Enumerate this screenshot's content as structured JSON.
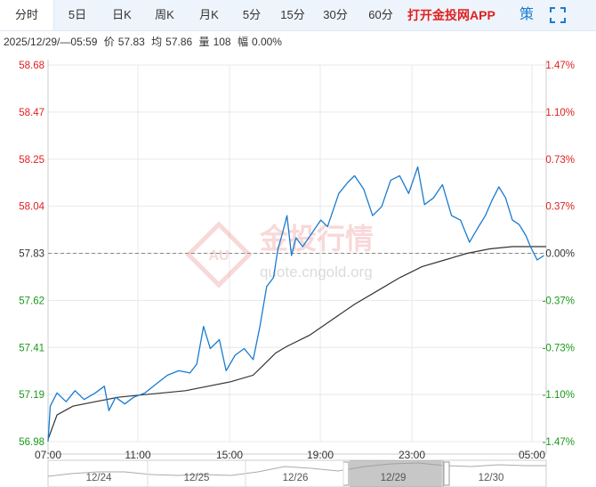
{
  "tabs": [
    {
      "label": "分时",
      "active": true
    },
    {
      "label": "5日",
      "active": false
    },
    {
      "label": "日K",
      "active": false
    },
    {
      "label": "周K",
      "active": false
    },
    {
      "label": "月K",
      "active": false
    },
    {
      "label": "5分",
      "active": false
    },
    {
      "label": "15分",
      "active": false
    },
    {
      "label": "30分",
      "active": false
    },
    {
      "label": "60分",
      "active": false
    }
  ],
  "app_link": "打开金投网APP",
  "strategy_icon": "策",
  "fullscreen_icon": "fullscreen-icon",
  "info": {
    "datetime": "2025/12/29/—05:59",
    "price_label": "价",
    "price": "57.83",
    "avg_label": "均",
    "avg": "57.86",
    "vol_label": "量",
    "volume": "108",
    "amp_label": "幅",
    "amplitude": "0.00%"
  },
  "watermark": {
    "logo_text": "AU",
    "name": "金投行情",
    "url": "quote.cngold.org"
  },
  "colors": {
    "up": "#e02020",
    "down": "#1a9a1a",
    "neutral": "#333333",
    "price_line": "#1a7bd0",
    "avg_line": "#333333",
    "ref_line": "#888888"
  },
  "chart_data": {
    "type": "line",
    "y_ticks": [
      "58.68",
      "58.47",
      "58.25",
      "58.04",
      "57.83",
      "57.62",
      "57.41",
      "57.19",
      "56.98"
    ],
    "pct_ticks": [
      "1.47%",
      "1.10%",
      "0.73%",
      "0.37%",
      "0.00%",
      "-0.37%",
      "-0.73%",
      "-1.10%",
      "-1.47%"
    ],
    "x_ticks": [
      "07:00",
      "11:00",
      "15:00",
      "19:00",
      "23:00",
      "05:00"
    ],
    "ylim": [
      56.98,
      58.68
    ],
    "prev_close": 57.83,
    "x_range_hours": [
      6.9,
      29.0
    ],
    "grid": true,
    "series": [
      {
        "role": "price",
        "points": [
          [
            6.9,
            56.98
          ],
          [
            7.0,
            57.14
          ],
          [
            7.3,
            57.2
          ],
          [
            7.7,
            57.16
          ],
          [
            8.1,
            57.21
          ],
          [
            8.5,
            57.17
          ],
          [
            9.0,
            57.2
          ],
          [
            9.4,
            57.23
          ],
          [
            9.6,
            57.12
          ],
          [
            9.9,
            57.18
          ],
          [
            10.3,
            57.15
          ],
          [
            10.7,
            57.18
          ],
          [
            11.2,
            57.2
          ],
          [
            11.7,
            57.24
          ],
          [
            12.2,
            57.28
          ],
          [
            12.7,
            57.3
          ],
          [
            13.2,
            57.29
          ],
          [
            13.5,
            57.33
          ],
          [
            13.8,
            57.5
          ],
          [
            14.1,
            57.4
          ],
          [
            14.5,
            57.44
          ],
          [
            14.8,
            57.3
          ],
          [
            15.2,
            57.37
          ],
          [
            15.6,
            57.4
          ],
          [
            16.0,
            57.35
          ],
          [
            16.3,
            57.5
          ],
          [
            16.6,
            57.68
          ],
          [
            16.9,
            57.72
          ],
          [
            17.1,
            57.85
          ],
          [
            17.3,
            57.92
          ],
          [
            17.5,
            58.0
          ],
          [
            17.7,
            57.82
          ],
          [
            17.9,
            57.9
          ],
          [
            18.2,
            57.86
          ],
          [
            18.6,
            57.92
          ],
          [
            19.0,
            57.98
          ],
          [
            19.3,
            57.95
          ],
          [
            19.8,
            58.1
          ],
          [
            20.2,
            58.15
          ],
          [
            20.5,
            58.18
          ],
          [
            20.9,
            58.12
          ],
          [
            21.3,
            58.0
          ],
          [
            21.7,
            58.04
          ],
          [
            22.1,
            58.16
          ],
          [
            22.5,
            58.18
          ],
          [
            22.9,
            58.1
          ],
          [
            23.3,
            58.22
          ],
          [
            23.6,
            58.05
          ],
          [
            24.0,
            58.08
          ],
          [
            24.4,
            58.14
          ],
          [
            24.8,
            58.0
          ],
          [
            25.2,
            57.98
          ],
          [
            25.6,
            57.88
          ],
          [
            26.0,
            57.95
          ],
          [
            26.3,
            58.0
          ],
          [
            26.6,
            58.07
          ],
          [
            26.9,
            58.13
          ],
          [
            27.2,
            58.08
          ],
          [
            27.5,
            57.98
          ],
          [
            27.8,
            57.96
          ],
          [
            28.1,
            57.91
          ],
          [
            28.3,
            57.86
          ],
          [
            28.6,
            57.8
          ],
          [
            28.9,
            57.82
          ]
        ]
      },
      {
        "role": "average",
        "points": [
          [
            6.9,
            56.99
          ],
          [
            7.3,
            57.1
          ],
          [
            8.0,
            57.14
          ],
          [
            9.0,
            57.16
          ],
          [
            10.0,
            57.18
          ],
          [
            11.0,
            57.19
          ],
          [
            12.0,
            57.2
          ],
          [
            13.0,
            57.21
          ],
          [
            14.0,
            57.23
          ],
          [
            15.0,
            57.25
          ],
          [
            16.0,
            57.28
          ],
          [
            16.5,
            57.33
          ],
          [
            17.0,
            57.38
          ],
          [
            17.5,
            57.41
          ],
          [
            18.5,
            57.46
          ],
          [
            19.5,
            57.53
          ],
          [
            20.5,
            57.6
          ],
          [
            21.5,
            57.66
          ],
          [
            22.5,
            57.72
          ],
          [
            23.5,
            57.77
          ],
          [
            24.5,
            57.8
          ],
          [
            25.5,
            57.83
          ],
          [
            26.5,
            57.85
          ],
          [
            27.5,
            57.86
          ],
          [
            28.5,
            57.86
          ],
          [
            29.0,
            57.86
          ]
        ]
      }
    ]
  },
  "navigator": {
    "dates": [
      "12/24",
      "12/25",
      "12/26",
      "12/29",
      "12/30"
    ],
    "selected": "12/29"
  }
}
